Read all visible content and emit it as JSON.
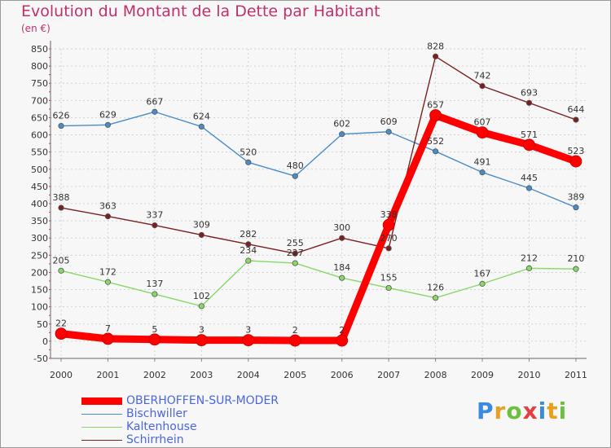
{
  "title": "Evolution du Montant de la Dette par Habitant",
  "subtitle": "(en €)",
  "logo_text": "Proxiti",
  "chart_data": {
    "type": "line",
    "title": "Evolution du Montant de la Dette par Habitant",
    "subtitle": "(en €)",
    "xlabel": "",
    "ylabel": "",
    "ylim": [
      -50,
      850
    ],
    "yticks": [
      -50,
      0,
      50,
      100,
      150,
      200,
      250,
      300,
      350,
      400,
      450,
      500,
      550,
      600,
      650,
      700,
      750,
      800,
      850
    ],
    "categories": [
      "2000",
      "2001",
      "2002",
      "2003",
      "2004",
      "2005",
      "2006",
      "2007",
      "2008",
      "2009",
      "2010",
      "2011"
    ],
    "grid": true,
    "legend_position": "bottom-left",
    "series": [
      {
        "name": "OBERHOFFEN-SUR-MODER",
        "color": "#ff0000",
        "values": [
          22,
          7,
          5,
          3,
          3,
          2,
          2,
          338,
          657,
          607,
          571,
          523
        ],
        "labels": [
          "22",
          "7",
          "5",
          "3",
          "3",
          "2",
          "2",
          "338",
          "657",
          "607",
          "571",
          "523"
        ],
        "thick": true
      },
      {
        "name": "Bischwiller",
        "color": "#4a8cc8",
        "values": [
          626,
          629,
          667,
          624,
          520,
          480,
          602,
          609,
          552,
          491,
          445,
          389
        ],
        "labels": [
          "626",
          "629",
          "667",
          "624",
          "520",
          "480",
          "602",
          "609",
          "552",
          "491",
          "445",
          "389"
        ],
        "thick": false
      },
      {
        "name": "Kaltenhouse",
        "color": "#88d868",
        "values": [
          205,
          172,
          137,
          102,
          234,
          227,
          184,
          155,
          126,
          167,
          212,
          210
        ],
        "labels": [
          "205",
          "172",
          "137",
          "102",
          "234",
          "227",
          "184",
          "155",
          "126",
          "167",
          "212",
          "210"
        ],
        "thick": false
      },
      {
        "name": "Schirrhein",
        "color": "#7a2020",
        "values": [
          388,
          363,
          337,
          309,
          282,
          255,
          300,
          270,
          828,
          742,
          693,
          644
        ],
        "labels": [
          "388",
          "363",
          "337",
          "309",
          "282",
          "255",
          "300",
          "270",
          "828",
          "742",
          "693",
          "644"
        ],
        "thick": false
      }
    ]
  }
}
